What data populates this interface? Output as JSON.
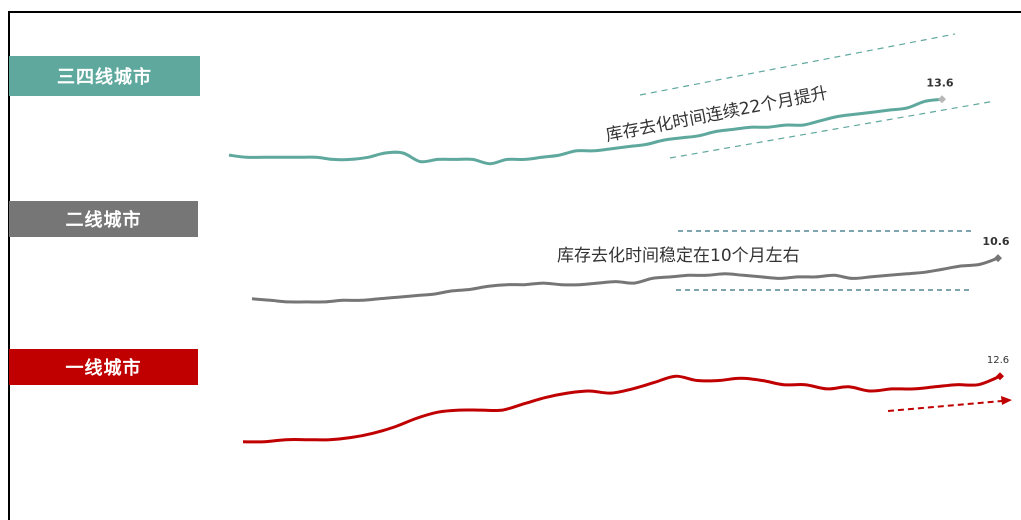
{
  "labels": {
    "tier34": "三四线城市",
    "tier2": "二线城市",
    "tier1": "一线城市"
  },
  "colors": {
    "tier34": "#5fa89e",
    "tier2": "#767676",
    "tier1": "#c00000"
  },
  "annotations": {
    "tier34": "库存去化时间连续22个月提升",
    "tier2": "库存去化时间稳定在10个月左右"
  },
  "chart_data": {
    "type": "line",
    "series": [
      {
        "name": "三四线城市",
        "last_value": "13.6",
        "values": [
          11.0,
          10.9,
          10.9,
          10.9,
          10.9,
          10.9,
          10.8,
          10.8,
          10.9,
          11.1,
          11.1,
          10.7,
          10.8,
          10.8,
          10.8,
          10.6,
          10.8,
          10.8,
          10.9,
          11.0,
          11.2,
          11.2,
          11.3,
          11.4,
          11.5,
          11.7,
          11.8,
          11.9,
          12.1,
          12.2,
          12.3,
          12.3,
          12.4,
          12.4,
          12.6,
          12.8,
          12.9,
          13.0,
          13.1,
          13.2,
          13.5,
          13.6
        ]
      },
      {
        "name": "二线城市",
        "last_value": "10.6",
        "values": [
          8.0,
          7.9,
          7.8,
          7.8,
          7.8,
          7.9,
          7.9,
          8.0,
          8.1,
          8.2,
          8.3,
          8.5,
          8.6,
          8.8,
          8.9,
          8.9,
          9.0,
          8.9,
          8.9,
          9.0,
          9.1,
          9.0,
          9.3,
          9.4,
          9.5,
          9.5,
          9.6,
          9.5,
          9.4,
          9.3,
          9.4,
          9.4,
          9.5,
          9.3,
          9.4,
          9.5,
          9.6,
          9.7,
          9.9,
          10.1,
          10.2,
          10.6
        ]
      },
      {
        "name": "一线城市",
        "last_value": "12.6",
        "values": [
          9.5,
          9.5,
          9.6,
          9.6,
          9.6,
          9.7,
          9.9,
          10.2,
          10.6,
          10.9,
          11.0,
          11.0,
          11.0,
          11.3,
          11.6,
          11.8,
          11.9,
          11.8,
          12.0,
          12.3,
          12.6,
          12.4,
          12.4,
          12.5,
          12.4,
          12.2,
          12.2,
          12.0,
          12.1,
          11.9,
          12.0,
          12.0,
          12.1,
          12.2,
          12.2,
          12.6
        ]
      }
    ]
  }
}
